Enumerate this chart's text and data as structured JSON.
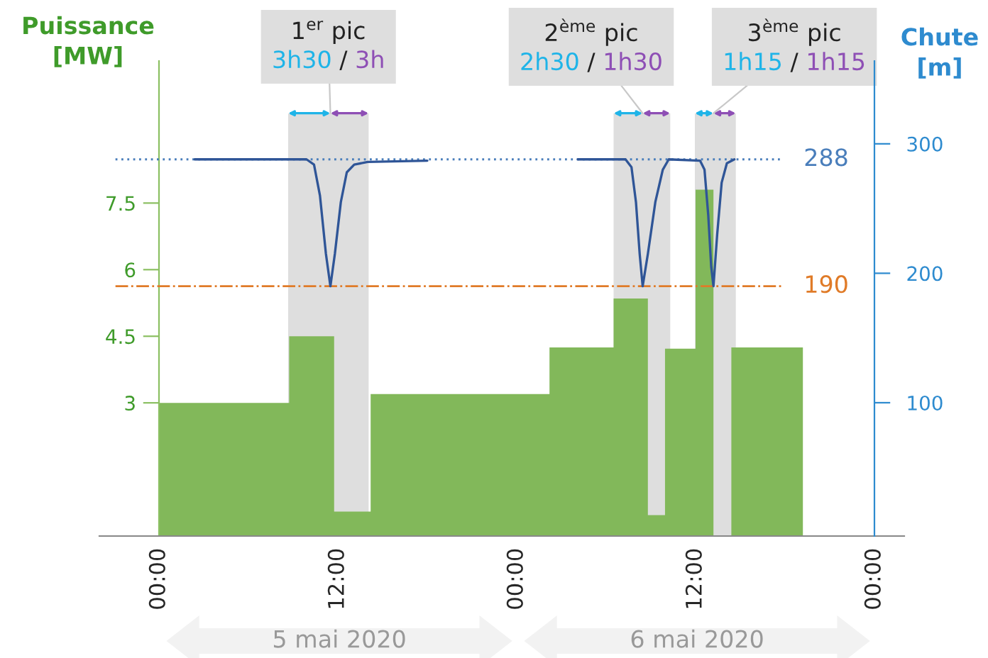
{
  "chart_data": {
    "type": "area",
    "ylabel": "Puissance\n[MW]",
    "y2label": "Chute\n[m]",
    "xlim": [
      "2020-05-04T20:00",
      "2020-05-07T02:00"
    ],
    "xticks": [
      {
        "value": "2020-05-05T00:00",
        "label": "00:00"
      },
      {
        "value": "2020-05-05T12:00",
        "label": "12:00"
      },
      {
        "value": "2020-05-06T00:00",
        "label": "00:00"
      },
      {
        "value": "2020-05-06T12:00",
        "label": "12:00"
      },
      {
        "value": "2020-05-07T00:00",
        "label": "00:00"
      }
    ],
    "ylim": [
      0,
      10.7
    ],
    "yticks": [
      3,
      4.5,
      6,
      7.5
    ],
    "y2lim": [
      -3,
      364
    ],
    "y2ticks": [
      100,
      200,
      300
    ],
    "series": [
      {
        "color": "#82b85a",
        "x": [
          "2020-05-05T00:00",
          "2020-05-05T08:44",
          "2020-05-05T08:44",
          "2020-05-05T11:45",
          "2020-05-05T11:45",
          "2020-05-05T14:12",
          "2020-05-05T14:12",
          "2020-05-06T02:12",
          "2020-05-06T02:12",
          "2020-05-06T06:30",
          "2020-05-06T06:30",
          "2020-05-06T08:48",
          "2020-05-06T08:48",
          "2020-05-06T09:57",
          "2020-05-06T09:57",
          "2020-05-06T12:00",
          "2020-05-06T12:00",
          "2020-05-06T13:12",
          "2020-05-06T13:12",
          "2020-05-06T14:24",
          "2020-05-06T14:24",
          "2020-05-06T19:12"
        ],
        "values": [
          3,
          3,
          4.5,
          4.5,
          0.55,
          0.55,
          3.2,
          3.2,
          4.25,
          4.25,
          5.35,
          5.35,
          0.47,
          0.47,
          4.22,
          4.22,
          7.8,
          7.8,
          0,
          0,
          4.25,
          4.25
        ]
      },
      {
        "type": "line",
        "axis": "y2",
        "color": "#2f5597",
        "x": [
          "2020-05-05T02:24",
          "2020-05-05T09:54",
          "2020-05-05T10:24",
          "2020-05-05T10:48",
          "2020-05-05T11:12",
          "2020-05-05T11:30",
          "2020-05-05T11:48",
          "2020-05-05T12:12",
          "2020-05-05T12:36",
          "2020-05-05T13:06",
          "2020-05-05T14:00",
          "2020-05-05T18:00",
          "2020-05-05T23:00",
          "2020-05-06T04:06",
          "2020-05-06T07:18",
          "2020-05-06T07:42",
          "2020-05-06T08:00",
          "2020-05-06T08:15",
          "2020-05-06T08:27",
          "2020-05-06T08:48",
          "2020-05-06T09:18",
          "2020-05-06T09:48",
          "2020-05-06T10:12",
          "2020-05-06T12:18",
          "2020-05-06T12:36",
          "2020-05-06T12:51",
          "2020-05-06T13:03",
          "2020-05-06T13:12",
          "2020-05-06T13:27",
          "2020-05-06T13:45",
          "2020-05-06T14:06",
          "2020-05-06T14:36"
        ],
        "values": [
          288,
          288,
          284,
          260,
          215,
          190,
          215,
          255,
          278,
          284,
          286,
          287,
          null,
          288,
          288,
          282,
          255,
          215,
          190,
          215,
          255,
          280,
          288,
          287,
          280,
          245,
          205,
          190,
          230,
          270,
          285,
          288
        ]
      }
    ],
    "bands": [
      {
        "axis": "x",
        "from": "2020-05-05T08:40",
        "to": "2020-05-05T14:04",
        "label": "1$^{er}$ pic\n3h30 / 3h",
        "color": "#dedede"
      },
      {
        "axis": "x",
        "from": "2020-05-06T06:30",
        "to": "2020-05-06T10:18",
        "label": "2$^{ème}$ pic\n2h30 / 1h30",
        "color": "#dedede"
      },
      {
        "axis": "x",
        "from": "2020-05-06T11:57",
        "to": "2020-05-06T14:42",
        "label": "3$^{ème}$ pic\n1h15 / 1h15",
        "color": "#dedede"
      }
    ],
    "ref_lines": [
      {
        "axis": "y2",
        "value": 288,
        "label": "288",
        "color": "#4a7ebb",
        "line_style": "dotted"
      },
      {
        "axis": "y2",
        "value": 190,
        "label": "190",
        "color": "#e07b28",
        "line_style": "dashdot"
      }
    ],
    "annotations": [
      "5 mai 2020",
      "6 mai 2020"
    ]
  }
}
